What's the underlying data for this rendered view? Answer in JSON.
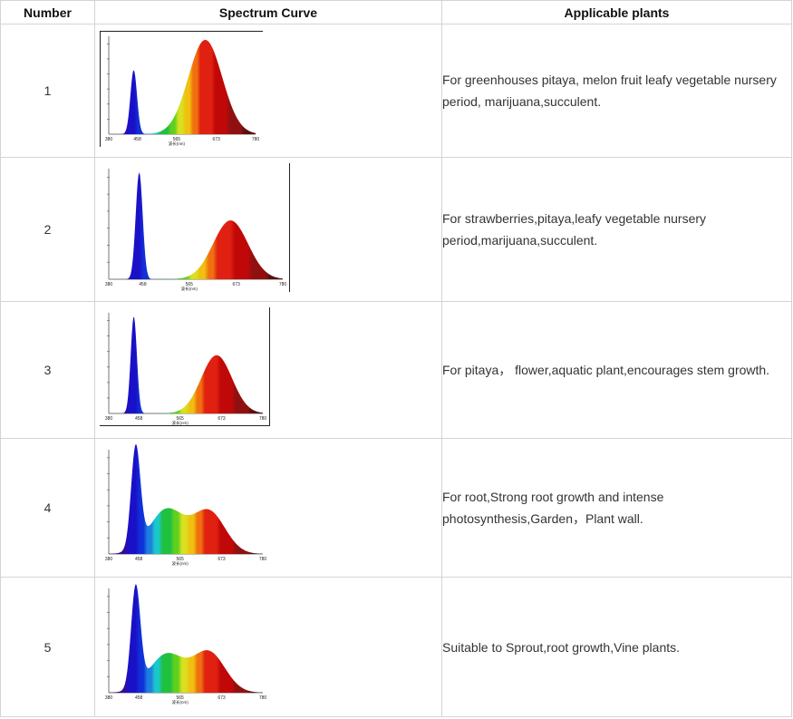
{
  "headers": {
    "number": "Number",
    "curve": "Spectrum Curve",
    "plants": "Applicable plants"
  },
  "rows": [
    {
      "number": "1",
      "plants": "For greenhouses pitaya, melon fruit leafy vegetable nursery period, marijuana,succulent."
    },
    {
      "number": "2",
      "plants": "For strawberries,pitaya,leafy vegetable nursery period,marijuana,succulent."
    },
    {
      "number": "3",
      "plants": "For pitaya， flower,aquatic plant,encourages stem growth."
    },
    {
      "number": "4",
      "plants": "For root,Strong root growth and intense photosynthesis,Garden，Plant wall."
    },
    {
      "number": "5",
      "plants": "Suitable to Sprout,root growth,Vine plants."
    }
  ],
  "axis": {
    "ticks": [
      "380",
      "458",
      "565",
      "673",
      "780"
    ],
    "xlabel": "波长(nm)"
  },
  "chart_data": [
    {
      "type": "area",
      "xlabel": "波长(nm)",
      "xlim": [
        380,
        780
      ],
      "x_ticks": [
        380,
        458,
        565,
        673,
        780
      ],
      "series": [
        {
          "peaks": [
            {
              "x": 448,
              "y": 0.68,
              "w": 9
            },
            {
              "x": 643,
              "y": 1.0,
              "w": 46
            }
          ]
        }
      ]
    },
    {
      "type": "area",
      "xlabel": "波长(nm)",
      "xlim": [
        380,
        780
      ],
      "x_ticks": [
        380,
        458,
        565,
        673,
        780
      ],
      "series": [
        {
          "peaks": [
            {
              "x": 450,
              "y": 1.0,
              "w": 8
            },
            {
              "x": 660,
              "y": 0.55,
              "w": 40
            }
          ]
        }
      ]
    },
    {
      "type": "area",
      "xlabel": "波长(nm)",
      "xlim": [
        380,
        780
      ],
      "x_ticks": [
        380,
        458,
        565,
        673,
        780
      ],
      "series": [
        {
          "peaks": [
            {
              "x": 445,
              "y": 1.0,
              "w": 8
            },
            {
              "x": 660,
              "y": 0.6,
              "w": 40
            }
          ]
        }
      ]
    },
    {
      "type": "area",
      "xlabel": "波长(nm)",
      "xlim": [
        380,
        780
      ],
      "x_ticks": [
        380,
        458,
        565,
        673,
        780
      ],
      "series": [
        {
          "peaks": [
            {
              "x": 450,
              "y": 1.0,
              "w": 12
            },
            {
              "x": 530,
              "y": 0.44,
              "w": 45
            },
            {
              "x": 640,
              "y": 0.42,
              "w": 42
            }
          ]
        }
      ]
    },
    {
      "type": "area",
      "xlabel": "波长(nm)",
      "xlim": [
        380,
        780
      ],
      "x_ticks": [
        380,
        458,
        565,
        673,
        780
      ],
      "series": [
        {
          "peaks": [
            {
              "x": 450,
              "y": 1.0,
              "w": 12
            },
            {
              "x": 530,
              "y": 0.38,
              "w": 45
            },
            {
              "x": 640,
              "y": 0.4,
              "w": 42
            }
          ]
        }
      ]
    }
  ]
}
